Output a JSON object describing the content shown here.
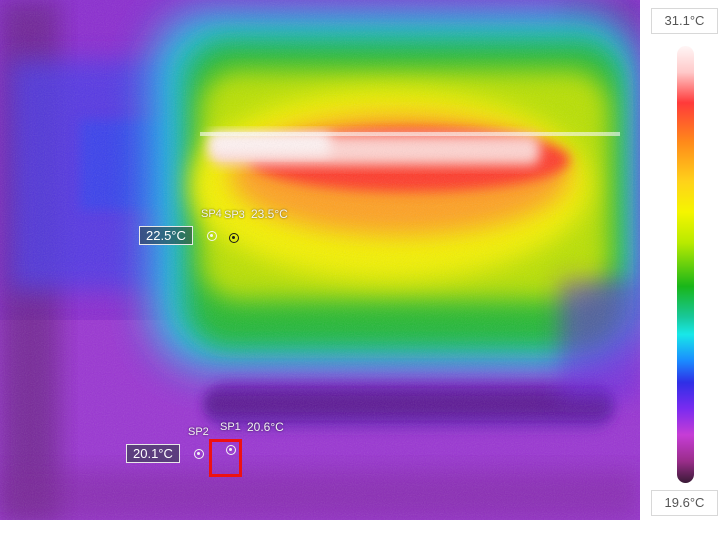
{
  "scale": {
    "max_label": "31.1°C",
    "min_label": "19.6°C"
  },
  "spots": {
    "sp1": {
      "name": "SP1",
      "value": "20.6°C"
    },
    "sp2": {
      "name": "SP2",
      "value": "20.1°C"
    },
    "sp3": {
      "name": "SP3",
      "value": "23.5°C"
    },
    "sp4": {
      "name": "SP4",
      "value": "22.5°C"
    }
  },
  "colors": {
    "hot": "#ff3a3a",
    "selection_box": "#ee1111",
    "background_cold": "#8a2bd0"
  }
}
